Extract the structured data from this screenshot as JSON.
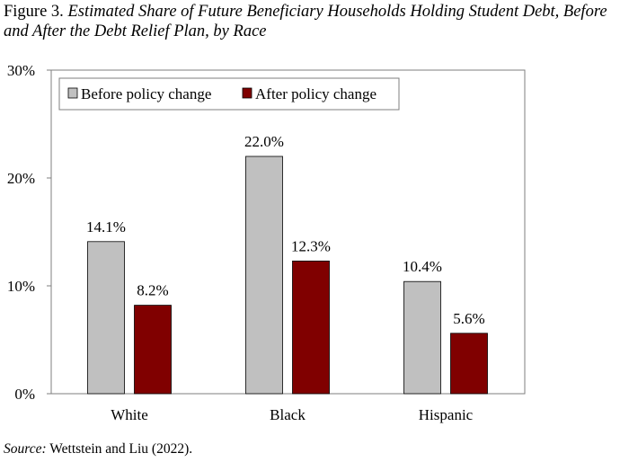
{
  "figure": {
    "number": "Figure 3.",
    "title": "Estimated Share of Future Beneficiary Households Holding Student Debt, Before and After the Debt Relief Plan, by Race"
  },
  "source": {
    "label": "Source:",
    "text": "Wettstein and Liu (2022)."
  },
  "chart_data": {
    "type": "bar",
    "categories": [
      "White",
      "Black",
      "Hispanic"
    ],
    "series": [
      {
        "name": "Before policy change",
        "values": [
          14.1,
          22.0,
          10.4
        ],
        "labels": [
          "14.1%",
          "22.0%",
          "10.4%"
        ],
        "color": "#c0c0c0"
      },
      {
        "name": "After policy change",
        "values": [
          8.2,
          12.3,
          5.6
        ],
        "labels": [
          "8.2%",
          "12.3%",
          "5.6%"
        ],
        "color": "#800000"
      }
    ],
    "yticks": [
      {
        "value": 0,
        "label": "0%"
      },
      {
        "value": 10,
        "label": "10%"
      },
      {
        "value": 20,
        "label": "20%"
      },
      {
        "value": 30,
        "label": "30%"
      }
    ],
    "ylim": [
      0,
      30
    ],
    "grid": false,
    "legend": "top-left"
  }
}
